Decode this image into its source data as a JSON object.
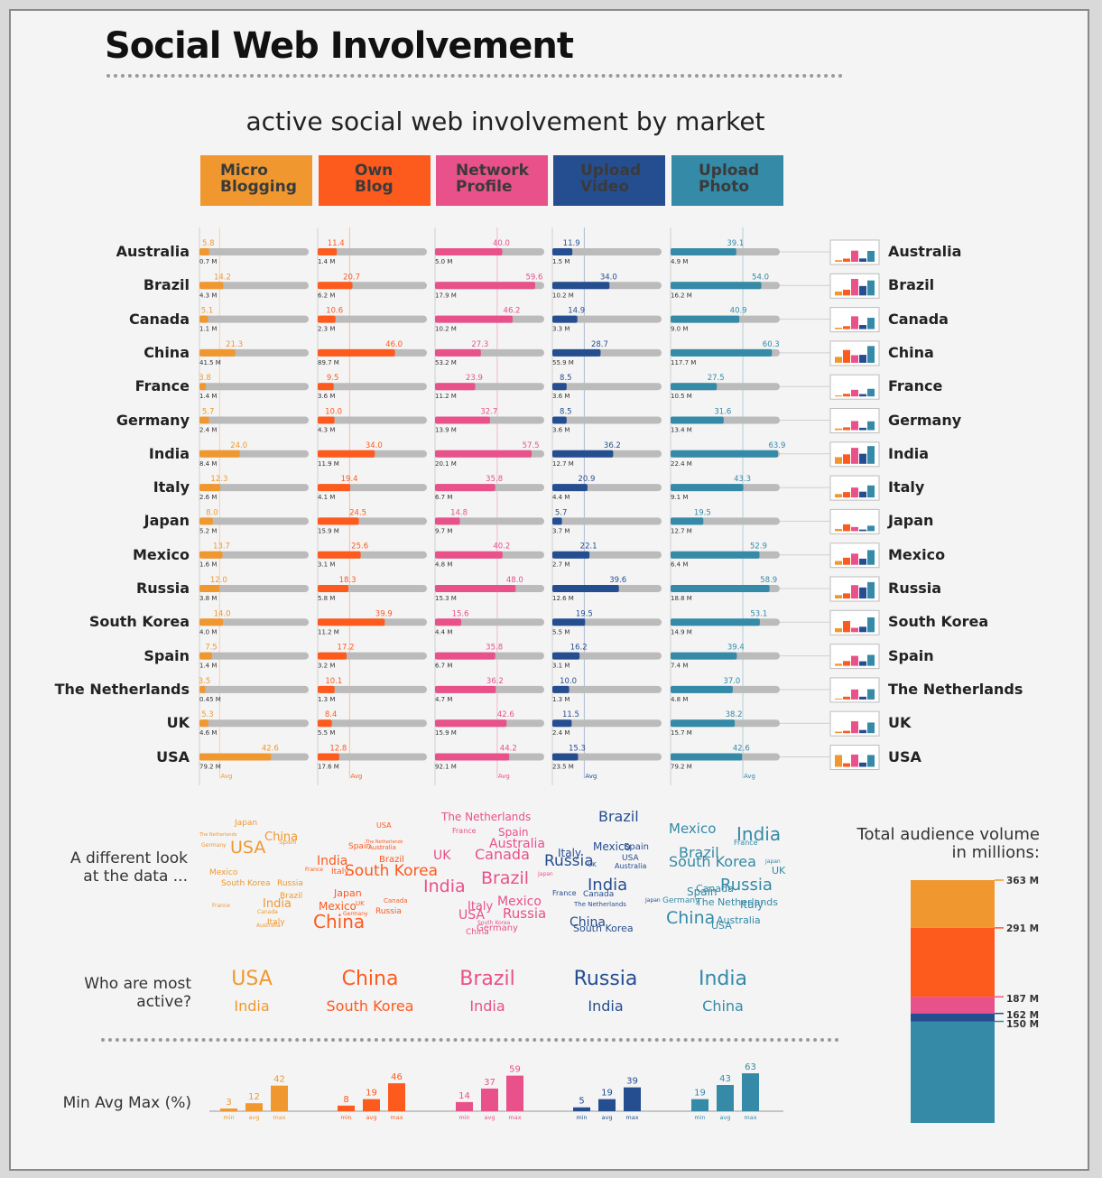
{
  "title": "Social Web Involvement",
  "subtitle": "active social web involvement by market",
  "colors": {
    "micro": "#f0982f",
    "blog": "#fd5a1e",
    "network": "#e8518a",
    "video": "#254e91",
    "photo": "#348aa7",
    "track": "#bbbbbb"
  },
  "categories_header": [
    {
      "line1": "Micro",
      "line2": "Blogging"
    },
    {
      "line1": "Own",
      "line2": "Blog"
    },
    {
      "line1": "Network",
      "line2": "Profile"
    },
    {
      "line1": "Upload",
      "line2": "Video"
    },
    {
      "line1": "Upload",
      "line2": "Photo"
    }
  ],
  "avg_label": "Avg",
  "cloud_label_1": "A different look",
  "cloud_label_2": "at the data ...",
  "active_label_1": "Who are most",
  "active_label_2": "active?",
  "most_active": [
    {
      "first": "USA",
      "second": "India"
    },
    {
      "first": "China",
      "second": "South Korea"
    },
    {
      "first": "Brazil",
      "second": "India"
    },
    {
      "first": "Russia",
      "second": "India"
    },
    {
      "first": "India",
      "second": "China"
    }
  ],
  "minavgmax_label": "Min Avg Max (%)",
  "minavgmax_ticks": [
    "min",
    "avg",
    "max"
  ],
  "audience_title_1": "Total audience volume",
  "audience_title_2": "in millions:",
  "chart_data": [
    {
      "type": "bar",
      "orientation": "horizontal",
      "title": "active social web involvement by market",
      "unit": "%",
      "xlim": [
        0,
        65
      ],
      "series_names": [
        "Micro Blogging",
        "Own Blog",
        "Network Profile",
        "Upload Video",
        "Upload Photo"
      ],
      "averages": [
        12,
        19,
        37,
        19,
        43
      ],
      "markets": [
        {
          "country": "Australia",
          "pct": [
            5.8,
            11.4,
            40.0,
            11.9,
            39.1
          ],
          "aud": [
            "0.7 M",
            "1.4 M",
            "5.0 M",
            "1.5 M",
            "4.9 M"
          ]
        },
        {
          "country": "Brazil",
          "pct": [
            14.2,
            20.7,
            59.6,
            34.0,
            54.0
          ],
          "aud": [
            "4.3 M",
            "6.2 M",
            "17.9 M",
            "10.2 M",
            "16.2 M"
          ]
        },
        {
          "country": "Canada",
          "pct": [
            5.1,
            10.6,
            46.2,
            14.9,
            40.9
          ],
          "aud": [
            "1.1 M",
            "2.3 M",
            "10.2 M",
            "3.3 M",
            "9.0 M"
          ]
        },
        {
          "country": "China",
          "pct": [
            21.3,
            46.0,
            27.3,
            28.7,
            60.3
          ],
          "aud": [
            "41.5 M",
            "89.7 M",
            "53.2 M",
            "55.9 M",
            "117.7 M"
          ]
        },
        {
          "country": "France",
          "pct": [
            3.8,
            9.5,
            23.9,
            8.5,
            27.5
          ],
          "aud": [
            "1.4 M",
            "3.6 M",
            "11.2 M",
            "3.6 M",
            "10.5 M"
          ]
        },
        {
          "country": "Germany",
          "pct": [
            5.7,
            10.0,
            32.7,
            8.5,
            31.6
          ],
          "aud": [
            "2.4 M",
            "4.3 M",
            "13.9 M",
            "3.6 M",
            "13.4 M"
          ]
        },
        {
          "country": "India",
          "pct": [
            24.0,
            34.0,
            57.5,
            36.2,
            63.9
          ],
          "aud": [
            "8.4 M",
            "11.9 M",
            "20.1 M",
            "12.7 M",
            "22.4 M"
          ]
        },
        {
          "country": "Italy",
          "pct": [
            12.3,
            19.4,
            35.8,
            20.9,
            43.3
          ],
          "aud": [
            "2.6 M",
            "4.1 M",
            "6.7 M",
            "4.4 M",
            "9.1 M"
          ]
        },
        {
          "country": "Japan",
          "pct": [
            8.0,
            24.5,
            14.8,
            5.7,
            19.5
          ],
          "aud": [
            "5.2 M",
            "15.9 M",
            "9.7 M",
            "3.7 M",
            "12.7 M"
          ]
        },
        {
          "country": "Mexico",
          "pct": [
            13.7,
            25.6,
            40.2,
            22.1,
            52.9
          ],
          "aud": [
            "1.6 M",
            "3.1 M",
            "4.8 M",
            "2.7 M",
            "6.4 M"
          ]
        },
        {
          "country": "Russia",
          "pct": [
            12.0,
            18.3,
            48.0,
            39.6,
            58.9
          ],
          "aud": [
            "3.8 M",
            "5.8 M",
            "15.3 M",
            "12.6 M",
            "18.8 M"
          ]
        },
        {
          "country": "South Korea",
          "pct": [
            14.0,
            39.9,
            15.6,
            19.5,
            53.1
          ],
          "aud": [
            "4.0 M",
            "11.2 M",
            "4.4 M",
            "5.5 M",
            "14.9 M"
          ]
        },
        {
          "country": "Spain",
          "pct": [
            7.5,
            17.2,
            35.8,
            16.2,
            39.4
          ],
          "aud": [
            "1.4 M",
            "3.2 M",
            "6.7 M",
            "3.1 M",
            "7.4 M"
          ]
        },
        {
          "country": "The Netherlands",
          "pct": [
            3.5,
            10.1,
            36.2,
            10.0,
            37.0
          ],
          "aud": [
            "0.45 M",
            "1.3 M",
            "4.7 M",
            "1.3 M",
            "4.8 M"
          ]
        },
        {
          "country": "UK",
          "pct": [
            5.3,
            8.4,
            42.6,
            11.5,
            38.2
          ],
          "aud": [
            "4.6 M",
            "5.5 M",
            "15.9 M",
            "2.4 M",
            "15.7 M"
          ]
        },
        {
          "country": "USA",
          "pct": [
            42.6,
            12.8,
            44.2,
            15.3,
            42.6
          ],
          "aud": [
            "79.2 M",
            "17.6 M",
            "92.1 M",
            "23.5 M",
            "79.2 M"
          ]
        }
      ]
    },
    {
      "type": "bar",
      "title": "Min Avg Max (%)",
      "categories": [
        "min",
        "avg",
        "max"
      ],
      "series": [
        {
          "name": "Micro Blogging",
          "values": [
            3,
            12,
            42
          ]
        },
        {
          "name": "Own Blog",
          "values": [
            8,
            19,
            46
          ]
        },
        {
          "name": "Network Profile",
          "values": [
            14,
            37,
            59
          ]
        },
        {
          "name": "Upload Video",
          "values": [
            5,
            19,
            39
          ]
        },
        {
          "name": "Upload Photo",
          "values": [
            19,
            43,
            63
          ]
        }
      ]
    },
    {
      "type": "bar",
      "orientation": "stacked",
      "title": "Total audience volume in millions:",
      "series": [
        {
          "name": "Micro Blogging",
          "top": 363
        },
        {
          "name": "Own Blog",
          "top": 291
        },
        {
          "name": "Network Profile",
          "top": 187
        },
        {
          "name": "Upload Video",
          "top": 162
        },
        {
          "name": "Upload Photo",
          "top": 150
        }
      ],
      "labels": [
        "363 M",
        "291 M",
        "187 M",
        "162 M",
        "150 M"
      ],
      "ylim": [
        0,
        435
      ]
    }
  ],
  "word_cloud": [
    [
      {
        "t": "Japan",
        "x": 260,
        "y": 908,
        "s": 9
      },
      {
        "t": "The Netherlands",
        "x": 221,
        "y": 923,
        "s": 5
      },
      {
        "t": "Germany",
        "x": 223,
        "y": 934,
        "s": 6
      },
      {
        "t": "USA",
        "x": 255,
        "y": 930,
        "s": 19
      },
      {
        "t": "China",
        "x": 293,
        "y": 921,
        "s": 13
      },
      {
        "t": "Spain",
        "x": 309,
        "y": 930,
        "s": 7
      },
      {
        "t": "Mexico",
        "x": 232,
        "y": 963,
        "s": 9
      },
      {
        "t": "South Korea",
        "x": 245,
        "y": 975,
        "s": 9
      },
      {
        "t": "Russia",
        "x": 307,
        "y": 975,
        "s": 9
      },
      {
        "t": "Brazil",
        "x": 310,
        "y": 989,
        "s": 9
      },
      {
        "t": "France",
        "x": 235,
        "y": 1001,
        "s": 6
      },
      {
        "t": "India",
        "x": 291,
        "y": 995,
        "s": 13
      },
      {
        "t": "Canada",
        "x": 285,
        "y": 1008,
        "s": 6
      },
      {
        "t": "Italy",
        "x": 296,
        "y": 1018,
        "s": 9
      },
      {
        "t": "Australia",
        "x": 284,
        "y": 1023,
        "s": 6
      }
    ],
    [
      {
        "t": "USA",
        "x": 417,
        "y": 911,
        "s": 8
      },
      {
        "t": "The Netherlands",
        "x": 405,
        "y": 931,
        "s": 5
      },
      {
        "t": "Spain",
        "x": 386,
        "y": 934,
        "s": 9
      },
      {
        "t": "Australia",
        "x": 408,
        "y": 936,
        "s": 7
      },
      {
        "t": "Brazil",
        "x": 420,
        "y": 948,
        "s": 10
      },
      {
        "t": "India",
        "x": 351,
        "y": 947,
        "s": 14
      },
      {
        "t": "France",
        "x": 338,
        "y": 961,
        "s": 6
      },
      {
        "t": "Italy",
        "x": 367,
        "y": 962,
        "s": 9
      },
      {
        "t": "South Korea",
        "x": 382,
        "y": 957,
        "s": 17
      },
      {
        "t": "Japan",
        "x": 370,
        "y": 984,
        "s": 11
      },
      {
        "t": "Mexico",
        "x": 353,
        "y": 998,
        "s": 12
      },
      {
        "t": "UK",
        "x": 394,
        "y": 998,
        "s": 7
      },
      {
        "t": "Germany",
        "x": 380,
        "y": 1010,
        "s": 6
      },
      {
        "t": "Canada",
        "x": 425,
        "y": 995,
        "s": 7
      },
      {
        "t": "Russia",
        "x": 416,
        "y": 1006,
        "s": 9
      },
      {
        "t": "China",
        "x": 347,
        "y": 1011,
        "s": 20
      }
    ],
    [
      {
        "t": "The Netherlands",
        "x": 489,
        "y": 899,
        "s": 12
      },
      {
        "t": "France",
        "x": 501,
        "y": 917,
        "s": 8
      },
      {
        "t": "Spain",
        "x": 552,
        "y": 916,
        "s": 12
      },
      {
        "t": "Australia",
        "x": 542,
        "y": 928,
        "s": 14
      },
      {
        "t": "UK",
        "x": 480,
        "y": 941,
        "s": 14
      },
      {
        "t": "Canada",
        "x": 526,
        "y": 939,
        "s": 16
      },
      {
        "t": "Brazil",
        "x": 533,
        "y": 964,
        "s": 19
      },
      {
        "t": "Japan",
        "x": 596,
        "y": 966,
        "s": 6
      },
      {
        "t": "India",
        "x": 469,
        "y": 973,
        "s": 19
      },
      {
        "t": "Mexico",
        "x": 551,
        "y": 992,
        "s": 14
      },
      {
        "t": "Italy",
        "x": 518,
        "y": 998,
        "s": 13
      },
      {
        "t": "Russia",
        "x": 557,
        "y": 1005,
        "s": 15
      },
      {
        "t": "USA",
        "x": 508,
        "y": 1007,
        "s": 14
      },
      {
        "t": "South Korea",
        "x": 529,
        "y": 1020,
        "s": 6
      },
      {
        "t": "Germany",
        "x": 528,
        "y": 1024,
        "s": 10
      },
      {
        "t": "China",
        "x": 516,
        "y": 1029,
        "s": 9
      }
    ],
    [
      {
        "t": "Brazil",
        "x": 663,
        "y": 897,
        "s": 16
      },
      {
        "t": "Mexico",
        "x": 657,
        "y": 932,
        "s": 12
      },
      {
        "t": "Spain",
        "x": 691,
        "y": 934,
        "s": 10
      },
      {
        "t": "Italy",
        "x": 618,
        "y": 939,
        "s": 12
      },
      {
        "t": "Russia",
        "x": 603,
        "y": 946,
        "s": 17
      },
      {
        "t": "USA",
        "x": 689,
        "y": 947,
        "s": 9
      },
      {
        "t": "Australia",
        "x": 681,
        "y": 956,
        "s": 8
      },
      {
        "t": "UK",
        "x": 651,
        "y": 955,
        "s": 7
      },
      {
        "t": "India",
        "x": 651,
        "y": 972,
        "s": 18
      },
      {
        "t": "Canada",
        "x": 646,
        "y": 987,
        "s": 9
      },
      {
        "t": "France",
        "x": 612,
        "y": 986,
        "s": 8
      },
      {
        "t": "The Netherlands",
        "x": 636,
        "y": 999,
        "s": 7
      },
      {
        "t": "Japan",
        "x": 715,
        "y": 995,
        "s": 6
      },
      {
        "t": "China",
        "x": 631,
        "y": 1015,
        "s": 14
      },
      {
        "t": "South Korea",
        "x": 635,
        "y": 1023,
        "s": 11
      }
    ],
    [
      {
        "t": "Mexico",
        "x": 741,
        "y": 911,
        "s": 15
      },
      {
        "t": "India",
        "x": 816,
        "y": 914,
        "s": 20
      },
      {
        "t": "France",
        "x": 813,
        "y": 930,
        "s": 8
      },
      {
        "t": "Brazil",
        "x": 752,
        "y": 937,
        "s": 16
      },
      {
        "t": "South Korea",
        "x": 741,
        "y": 947,
        "s": 16
      },
      {
        "t": "Japan",
        "x": 848,
        "y": 952,
        "s": 6
      },
      {
        "t": "UK",
        "x": 855,
        "y": 959,
        "s": 11
      },
      {
        "t": "Canada",
        "x": 771,
        "y": 979,
        "s": 11
      },
      {
        "t": "Russia",
        "x": 798,
        "y": 972,
        "s": 18
      },
      {
        "t": "Spain",
        "x": 761,
        "y": 982,
        "s": 12
      },
      {
        "t": "Italy",
        "x": 820,
        "y": 996,
        "s": 12
      },
      {
        "t": "Germany",
        "x": 734,
        "y": 994,
        "s": 9
      },
      {
        "t": "The Netherlands",
        "x": 771,
        "y": 994,
        "s": 11
      },
      {
        "t": "China",
        "x": 738,
        "y": 1008,
        "s": 19
      },
      {
        "t": "Australia",
        "x": 794,
        "y": 1014,
        "s": 11
      },
      {
        "t": "USA",
        "x": 788,
        "y": 1020,
        "s": 11
      }
    ]
  ]
}
